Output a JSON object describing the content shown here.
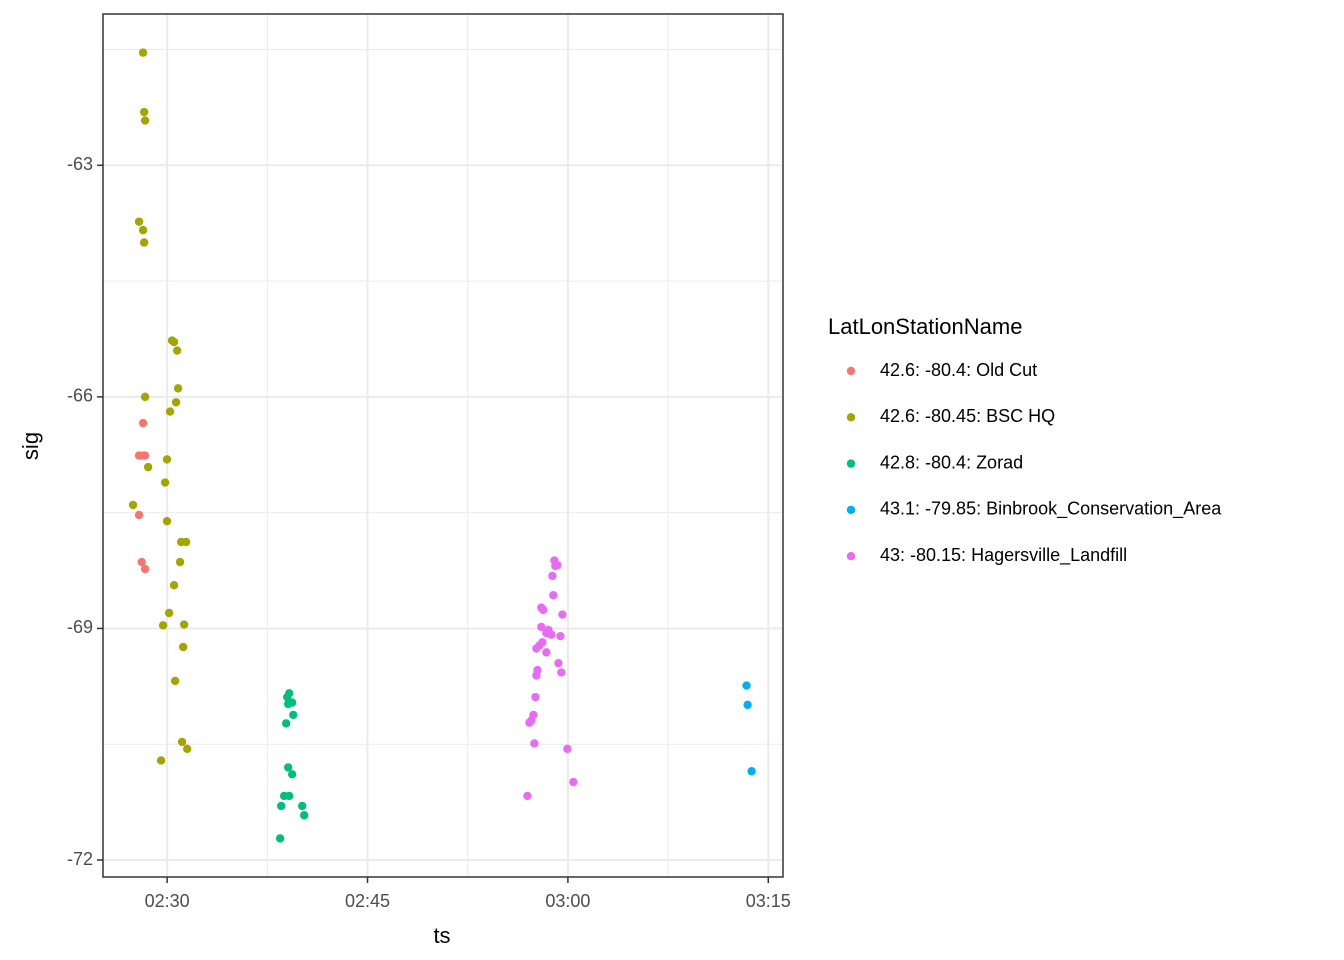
{
  "chart_data": {
    "type": "scatter",
    "x_label": "ts",
    "y_label": "sig",
    "legend_title": "LatLonStationName",
    "legend_position": "right",
    "grid": true,
    "xlim": [
      145.2,
      196.1
    ],
    "ylim": [
      -72.22,
      -61.04
    ],
    "xticks": [
      {
        "value": 150,
        "label": "02:30"
      },
      {
        "value": 165,
        "label": "02:45"
      },
      {
        "value": 180,
        "label": "03:00"
      },
      {
        "value": 195,
        "label": "03:15"
      }
    ],
    "yticks": [
      -63,
      -66,
      -69,
      -72
    ],
    "x_minor_ticks": [
      157.5,
      172.5,
      187.5
    ],
    "y_minor_ticks": [
      -61.5,
      -64.5,
      -67.5,
      -70.5
    ],
    "series": [
      {
        "name": "42.6: -80.4: Old Cut",
        "color": "#F8766D",
        "x": [
          148.2,
          147.9,
          148.1,
          148.35,
          147.9,
          148.1,
          148.35
        ],
        "values": [
          -66.34,
          -66.76,
          -66.76,
          -66.76,
          -67.53,
          -68.14,
          -68.23
        ]
      },
      {
        "name": "42.6: -80.45: BSC HQ",
        "color": "#A3A500",
        "x": [
          148.2,
          148.28,
          148.35,
          147.9,
          148.2,
          148.28,
          150.37,
          150.52,
          150.75,
          150.82,
          150.67,
          148.35,
          150.22,
          149.99,
          148.58,
          149.85,
          147.45,
          149.99,
          151.05,
          151.42,
          150.97,
          150.52,
          150.15,
          149.7,
          151.27,
          151.2,
          150.6,
          151.12,
          151.5,
          149.55
        ],
        "values": [
          -61.54,
          -62.31,
          -62.42,
          -63.73,
          -63.84,
          -64.0,
          -65.27,
          -65.29,
          -65.4,
          -65.89,
          -66.07,
          -66.0,
          -66.19,
          -66.81,
          -66.91,
          -67.11,
          -67.4,
          -67.61,
          -67.88,
          -67.88,
          -68.14,
          -68.44,
          -68.8,
          -68.96,
          -68.95,
          -69.24,
          -69.68,
          -70.47,
          -70.56,
          -70.71
        ]
      },
      {
        "name": "42.8: -80.4: Zorad",
        "color": "#00BF7D",
        "x": [
          159.14,
          158.99,
          159.36,
          159.06,
          159.44,
          158.91,
          159.06,
          159.36,
          158.76,
          159.14,
          160.11,
          158.54,
          160.26,
          158.46
        ],
        "values": [
          -69.84,
          -69.89,
          -69.96,
          -69.98,
          -70.12,
          -70.23,
          -70.8,
          -70.89,
          -71.17,
          -71.17,
          -71.3,
          -71.3,
          -71.42,
          -71.72
        ]
      },
      {
        "name": "43.1: -79.85: Binbrook_Conservation_Area",
        "color": "#00B0F6",
        "x": [
          193.37,
          193.45,
          193.75
        ],
        "values": [
          -69.74,
          -69.99,
          -70.85
        ]
      },
      {
        "name": "43: -80.15: Hagersville_Landfill",
        "color": "#E76BF3",
        "x": [
          178.99,
          179.06,
          179.21,
          178.84,
          178.91,
          178.01,
          178.16,
          179.59,
          178.01,
          178.39,
          178.54,
          178.76,
          179.44,
          178.09,
          177.87,
          177.64,
          178.39,
          179.29,
          177.72,
          177.64,
          179.51,
          177.57,
          177.42,
          177.27,
          177.12,
          177.49,
          179.96,
          180.41,
          176.97
        ],
        "values": [
          -68.12,
          -68.19,
          -68.18,
          -68.32,
          -68.57,
          -68.73,
          -68.76,
          -68.82,
          -68.98,
          -69.06,
          -69.02,
          -69.08,
          -69.1,
          -69.18,
          -69.22,
          -69.26,
          -69.31,
          -69.45,
          -69.54,
          -69.61,
          -69.57,
          -69.89,
          -70.12,
          -70.19,
          -70.22,
          -70.49,
          -70.56,
          -70.99,
          -71.17
        ]
      }
    ]
  }
}
